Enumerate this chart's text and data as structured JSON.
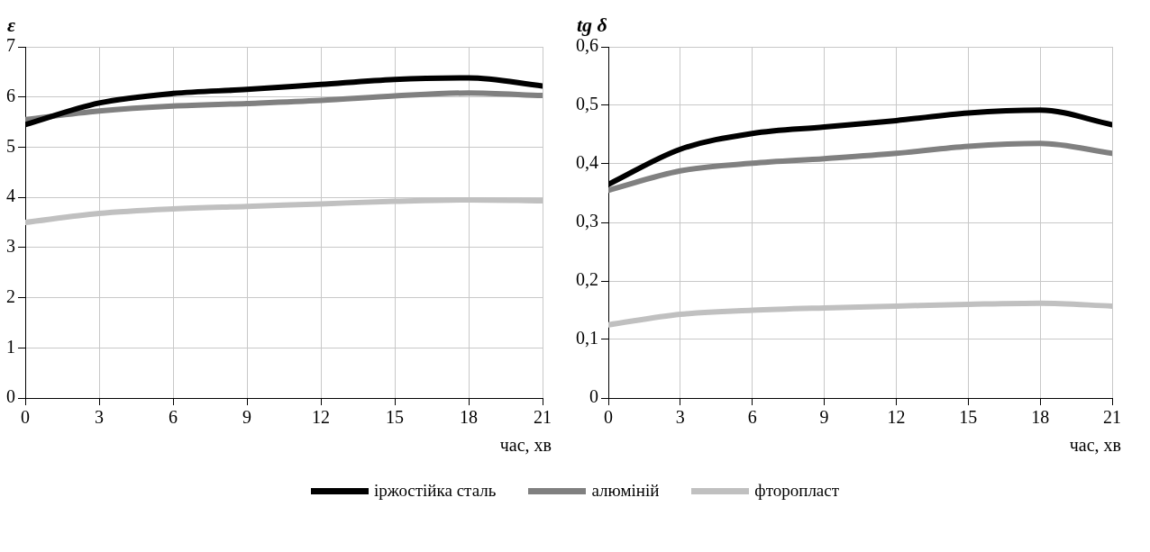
{
  "chart_data": [
    {
      "type": "line",
      "ylabel": "ε",
      "xlabel": "час, хв",
      "x": [
        0,
        3,
        6,
        9,
        12,
        15,
        18,
        21
      ],
      "xlim": [
        0,
        21
      ],
      "xticks": [
        0,
        3,
        6,
        9,
        12,
        15,
        18,
        21
      ],
      "ylim": [
        0,
        7
      ],
      "yticks": [
        0,
        1,
        2,
        3,
        4,
        5,
        6,
        7
      ],
      "grid": true,
      "legend": "bottom",
      "marker": "none",
      "line_style": "solid",
      "series": [
        {
          "name": "іржостійка сталь",
          "color": "#000000",
          "values": [
            5.45,
            5.88,
            6.07,
            6.15,
            6.25,
            6.35,
            6.38,
            6.22
          ]
        },
        {
          "name": "алюміній",
          "color": "#808080",
          "values": [
            5.55,
            5.72,
            5.82,
            5.87,
            5.93,
            6.02,
            6.08,
            6.03
          ]
        },
        {
          "name": "фторопласт",
          "color": "#c0c0c0",
          "values": [
            3.5,
            3.68,
            3.77,
            3.82,
            3.87,
            3.92,
            3.95,
            3.93
          ]
        }
      ]
    },
    {
      "type": "line",
      "ylabel": "tg δ",
      "xlabel": "час, хв",
      "x": [
        0,
        3,
        6,
        9,
        12,
        15,
        18,
        21
      ],
      "xlim": [
        0,
        21
      ],
      "xticks": [
        0,
        3,
        6,
        9,
        12,
        15,
        18,
        21
      ],
      "ylim": [
        0,
        0.6
      ],
      "yticks": [
        0,
        {
          "value": 0.1,
          "label": "0,1"
        },
        {
          "value": 0.2,
          "label": "0,2"
        },
        {
          "value": 0.3,
          "label": "0,3"
        },
        {
          "value": 0.4,
          "label": "0,4"
        },
        {
          "value": 0.5,
          "label": "0,5"
        },
        {
          "value": 0.6,
          "label": "0,6"
        }
      ],
      "grid": true,
      "marker": "none",
      "line_style": "solid",
      "series": [
        {
          "color": "#000000",
          "values": [
            0.365,
            0.425,
            0.452,
            0.463,
            0.474,
            0.487,
            0.492,
            0.467
          ]
        },
        {
          "color": "#808080",
          "values": [
            0.355,
            0.388,
            0.401,
            0.409,
            0.418,
            0.43,
            0.435,
            0.418
          ]
        },
        {
          "color": "#c0c0c0",
          "values": [
            0.125,
            0.143,
            0.15,
            0.154,
            0.157,
            0.16,
            0.162,
            0.157
          ]
        }
      ]
    }
  ]
}
